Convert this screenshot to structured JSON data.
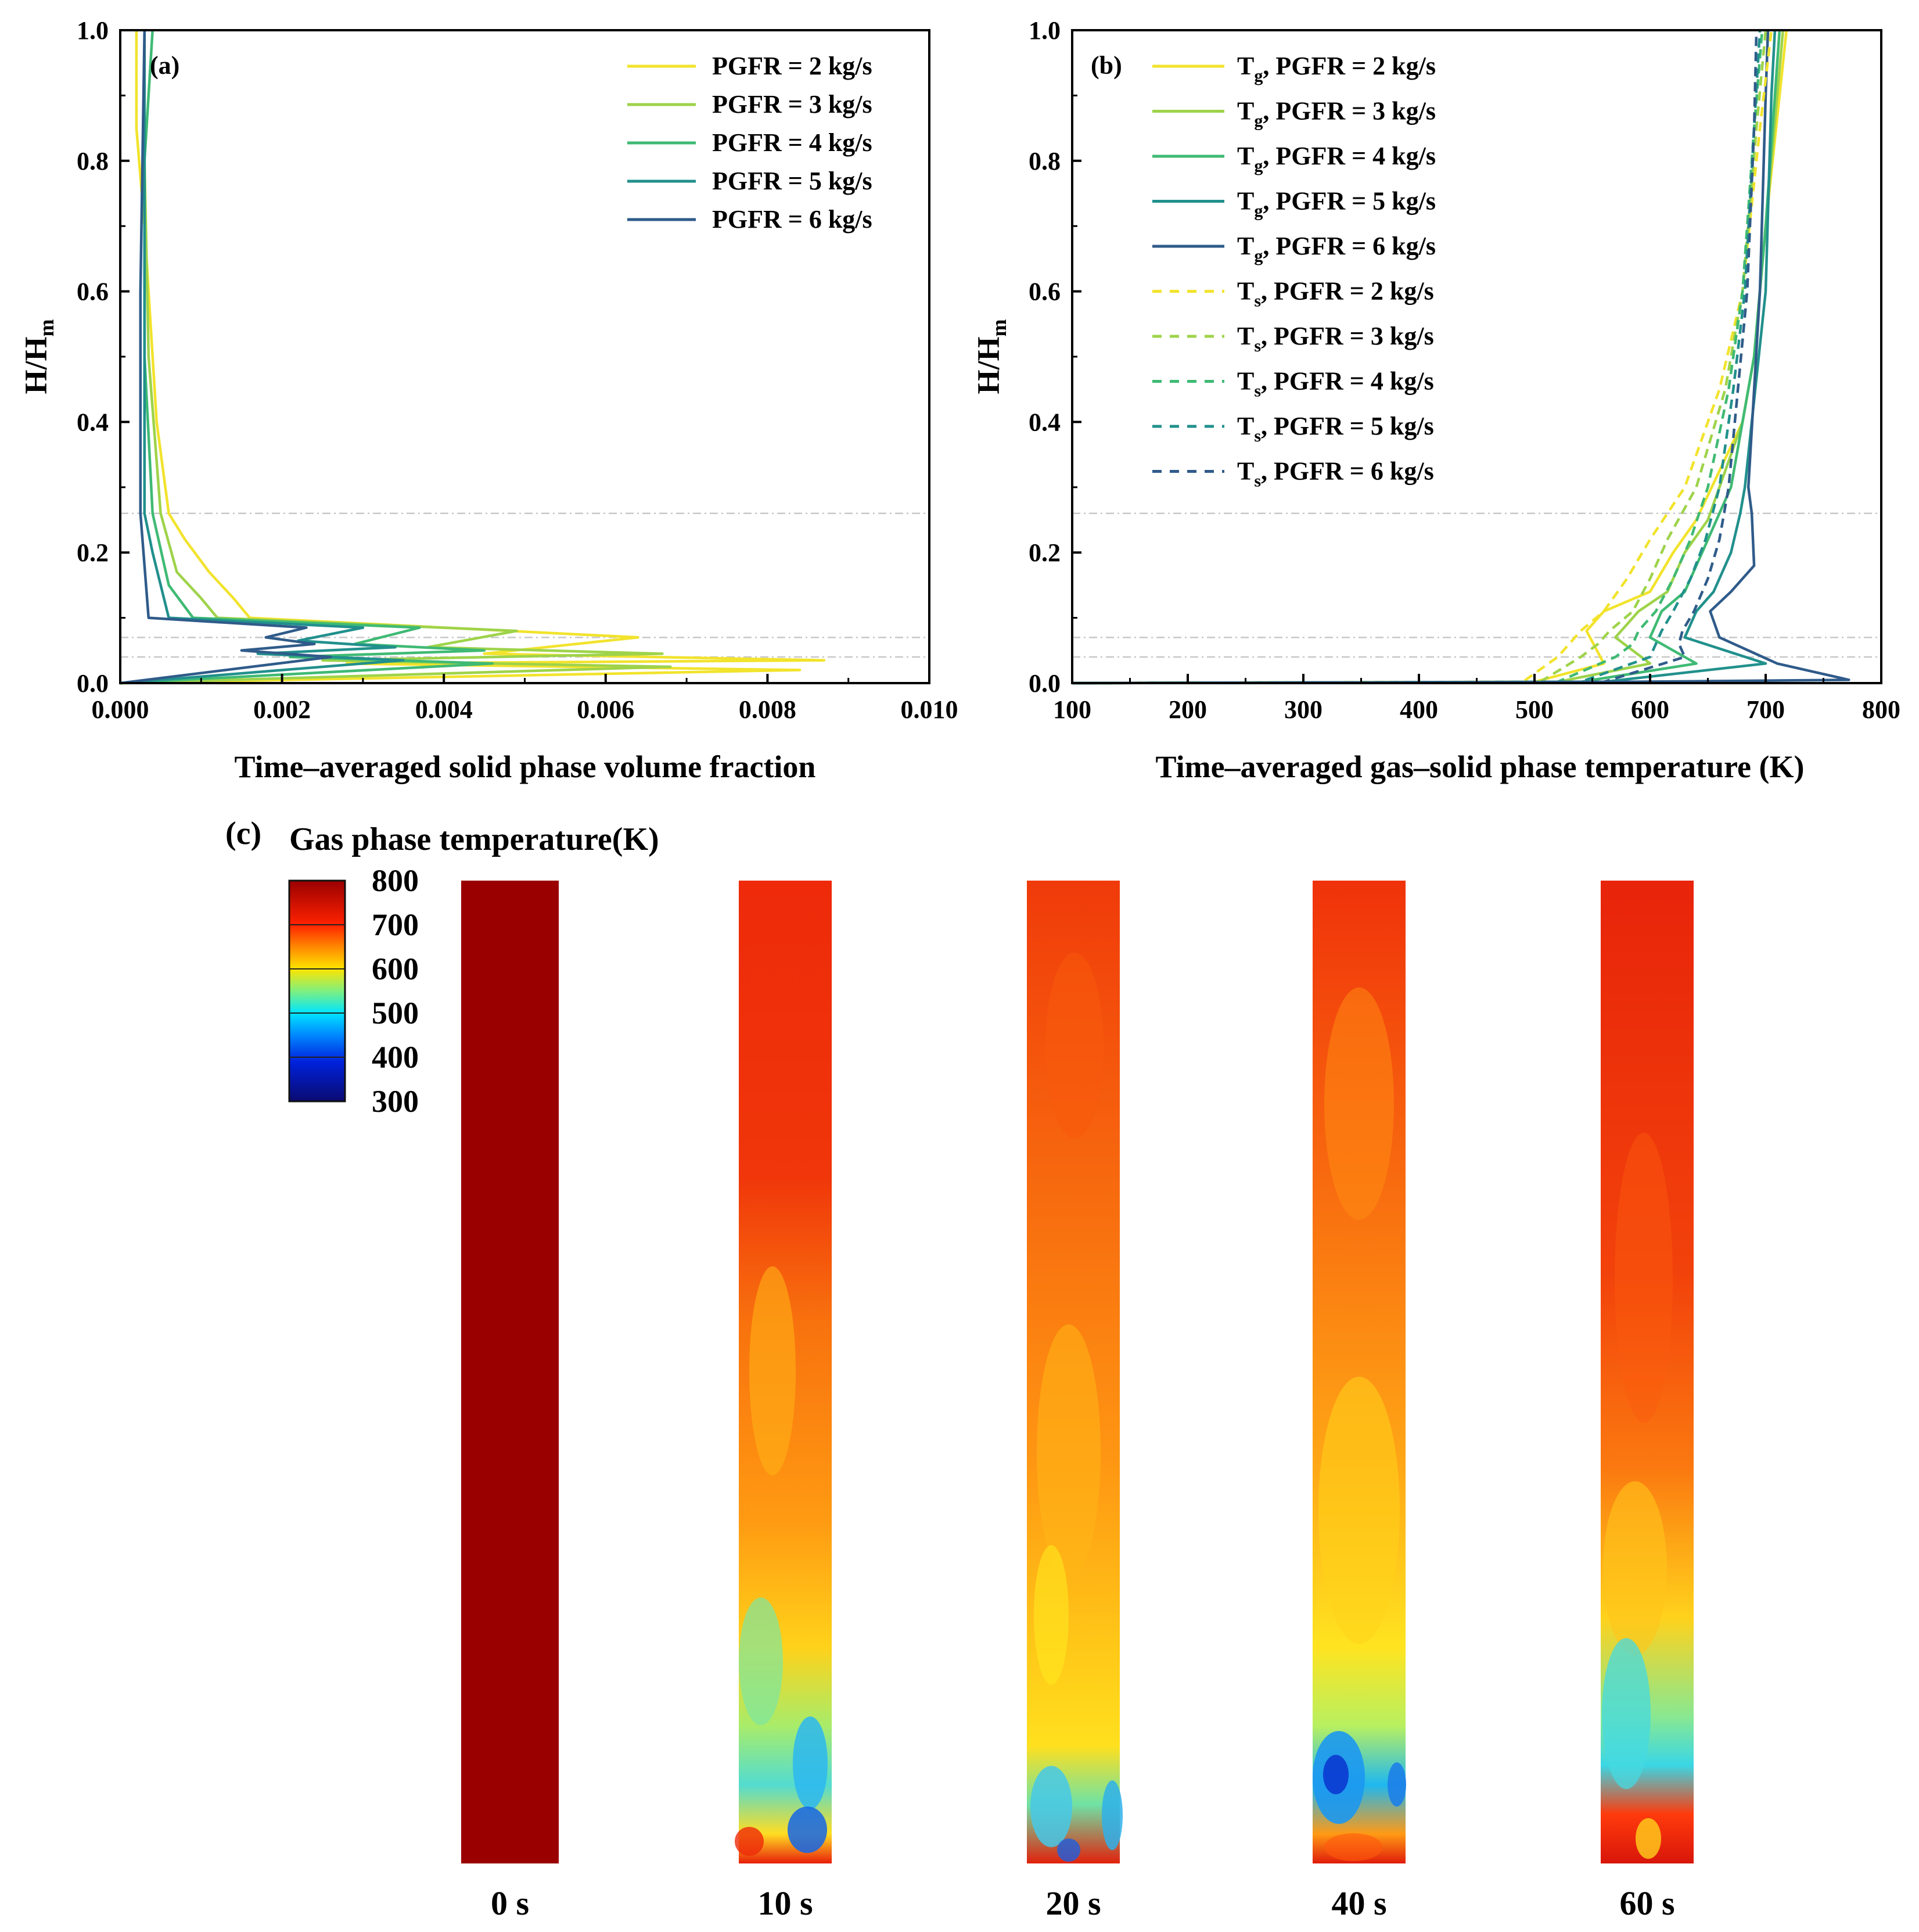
{
  "palette": {
    "pgfr2": "#f2e32c",
    "pgfr3": "#9ed34a",
    "pgfr4": "#3fba74",
    "pgfr5": "#21908c",
    "pgfr6": "#2f5b8a",
    "guide": "#c8c8c8"
  },
  "panel_a": {
    "label": "(a)",
    "xlabel": "Time–averaged solid phase volume fraction",
    "ylabel_main": "H/H",
    "ylabel_sub": "m",
    "xlim": [
      0,
      0.01
    ],
    "ylim": [
      0,
      1
    ],
    "xticks": [
      "0.000",
      "0.002",
      "0.004",
      "0.006",
      "0.008",
      "0.010"
    ],
    "yticks": [
      "0.0",
      "0.2",
      "0.4",
      "0.6",
      "0.8",
      "1.0"
    ],
    "legend": [
      "PGFR = 2 kg/s",
      "PGFR = 3 kg/s",
      "PGFR = 4 kg/s",
      "PGFR = 5 kg/s",
      "PGFR = 6 kg/s"
    ]
  },
  "panel_b": {
    "label": "(b)",
    "xlabel": "Time–averaged gas–solid phase temperature (K)",
    "ylabel_main": "H/H",
    "ylabel_sub": "m",
    "xlim": [
      100,
      800
    ],
    "ylim": [
      0,
      1
    ],
    "xticks": [
      "100",
      "200",
      "300",
      "400",
      "500",
      "600",
      "700",
      "800"
    ],
    "yticks": [
      "0.0",
      "0.2",
      "0.4",
      "0.6",
      "0.8",
      "1.0"
    ],
    "legend_gas": [
      {
        "sym": "T",
        "sub": "g",
        "text": ", PGFR = 2 kg/s"
      },
      {
        "sym": "T",
        "sub": "g",
        "text": ", PGFR = 3 kg/s"
      },
      {
        "sym": "T",
        "sub": "g",
        "text": ", PGFR = 4 kg/s"
      },
      {
        "sym": "T",
        "sub": "g",
        "text": ", PGFR = 5 kg/s"
      },
      {
        "sym": "T",
        "sub": "g",
        "text": ", PGFR = 6 kg/s"
      }
    ],
    "legend_solid": [
      {
        "sym": "T",
        "sub": "s",
        "text": ", PGFR = 2 kg/s"
      },
      {
        "sym": "T",
        "sub": "s",
        "text": ", PGFR = 3 kg/s"
      },
      {
        "sym": "T",
        "sub": "s",
        "text": ", PGFR = 4 kg/s"
      },
      {
        "sym": "T",
        "sub": "s",
        "text": ", PGFR = 5 kg/s"
      },
      {
        "sym": "T",
        "sub": "s",
        "text": ", PGFR = 6 kg/s"
      }
    ]
  },
  "panel_c": {
    "label": "(c)",
    "title": "Gas phase temperature(K)",
    "colorbar_ticks": [
      "800",
      "700",
      "600",
      "500",
      "400",
      "300"
    ],
    "times": [
      "0 s",
      "10 s",
      "20 s",
      "40 s",
      "60 s"
    ]
  },
  "chart_data": [
    {
      "type": "line",
      "title": "(a)",
      "xlabel": "Time–averaged solid phase volume fraction",
      "ylabel": "H/Hm",
      "xlim": [
        0,
        0.01
      ],
      "ylim": [
        0,
        1
      ],
      "reference_lines_y": [
        0.04,
        0.07,
        0.26
      ],
      "series": [
        {
          "name": "PGFR = 2 kg/s",
          "x": [
            0,
            0.0084,
            0.0028,
            0.0087,
            0.0045,
            0.0064,
            0.0016,
            0.0014,
            0.0011,
            0.0008,
            0.0006,
            0.00045,
            0.0003,
            0.0002,
            0.0002
          ],
          "y": [
            0,
            0.02,
            0.03,
            0.035,
            0.045,
            0.07,
            0.1,
            0.13,
            0.17,
            0.22,
            0.26,
            0.4,
            0.7,
            0.85,
            1.0
          ]
        },
        {
          "name": "PGFR = 3 kg/s",
          "x": [
            0,
            0.0068,
            0.0025,
            0.0067,
            0.0038,
            0.0049,
            0.0012,
            0.001,
            0.0007,
            0.0005,
            0.00035,
            0.0003,
            0.0003
          ],
          "y": [
            0,
            0.025,
            0.035,
            0.045,
            0.055,
            0.08,
            0.1,
            0.13,
            0.17,
            0.26,
            0.5,
            0.8,
            1.0
          ]
        },
        {
          "name": "PGFR = 4 kg/s",
          "x": [
            0,
            0.0046,
            0.0021,
            0.0045,
            0.0029,
            0.0037,
            0.0009,
            0.0006,
            0.0004,
            0.0003,
            0.0003,
            0.0004
          ],
          "y": [
            0,
            0.03,
            0.04,
            0.05,
            0.06,
            0.085,
            0.1,
            0.15,
            0.26,
            0.5,
            0.8,
            1.0
          ]
        },
        {
          "name": "PGFR = 5 kg/s",
          "x": [
            0,
            0.0035,
            0.0017,
            0.0034,
            0.0022,
            0.003,
            0.0006,
            0.0004,
            0.0003,
            0.0003,
            0.0003
          ],
          "y": [
            0,
            0.035,
            0.045,
            0.055,
            0.065,
            0.085,
            0.1,
            0.2,
            0.26,
            0.6,
            1.0
          ]
        },
        {
          "name": "PGFR = 6 kg/s",
          "x": [
            0,
            0.0026,
            0.0015,
            0.0024,
            0.0018,
            0.0023,
            0.00035,
            0.00025,
            0.00025,
            0.0003
          ],
          "y": [
            0,
            0.04,
            0.05,
            0.06,
            0.07,
            0.085,
            0.1,
            0.26,
            0.6,
            1.0
          ]
        }
      ]
    },
    {
      "type": "line",
      "title": "(b)",
      "xlabel": "Time–averaged gas–solid phase temperature (K)",
      "ylabel": "H/Hm",
      "xlim": [
        100,
        800
      ],
      "ylim": [
        0,
        1
      ],
      "reference_lines_y": [
        0.04,
        0.07,
        0.26
      ],
      "series": [
        {
          "name": "Tg, PGFR = 2 kg/s",
          "style": "solid",
          "x": [
            100,
            500,
            560,
            545,
            560,
            600,
            620,
            640,
            680,
            690,
            700,
            712,
            718
          ],
          "y": [
            0.0,
            0.002,
            0.03,
            0.08,
            0.11,
            0.14,
            0.2,
            0.25,
            0.4,
            0.5,
            0.7,
            0.9,
            1.0
          ]
        },
        {
          "name": "Tg, PGFR = 3 kg/s",
          "style": "solid",
          "x": [
            100,
            520,
            600,
            570,
            590,
            615,
            630,
            650,
            680,
            690,
            700,
            710,
            715
          ],
          "y": [
            0.0,
            0.002,
            0.03,
            0.07,
            0.11,
            0.14,
            0.2,
            0.25,
            0.4,
            0.5,
            0.7,
            0.9,
            1.0
          ]
        },
        {
          "name": "Tg, PGFR = 4 kg/s",
          "style": "solid",
          "x": [
            100,
            540,
            640,
            600,
            610,
            630,
            645,
            660,
            670,
            680,
            690,
            700,
            708,
            712
          ],
          "y": [
            0.0,
            0.002,
            0.03,
            0.07,
            0.11,
            0.14,
            0.2,
            0.26,
            0.3,
            0.4,
            0.5,
            0.7,
            0.9,
            1.0
          ]
        },
        {
          "name": "Tg, PGFR = 5 kg/s",
          "style": "solid",
          "x": [
            100,
            560,
            700,
            630,
            640,
            655,
            670,
            678,
            682,
            688,
            700,
            705,
            708
          ],
          "y": [
            0.0,
            0.002,
            0.03,
            0.07,
            0.11,
            0.14,
            0.2,
            0.26,
            0.3,
            0.4,
            0.6,
            0.9,
            1.0
          ]
        },
        {
          "name": "Tg, PGFR = 6 kg/s",
          "style": "solid",
          "x": [
            100,
            580,
            772,
            710,
            660,
            652,
            670,
            690,
            688,
            685,
            695,
            700,
            702
          ],
          "y": [
            0.0,
            0.002,
            0.005,
            0.03,
            0.07,
            0.11,
            0.14,
            0.18,
            0.26,
            0.3,
            0.6,
            0.9,
            1.0
          ]
        },
        {
          "name": "Ts, PGFR = 2 kg/s",
          "style": "dashed",
          "x": [
            100,
            490,
            520,
            530,
            540,
            560,
            580,
            600,
            630,
            660,
            680,
            695,
            705
          ],
          "y": [
            0.0,
            0.002,
            0.04,
            0.06,
            0.08,
            0.11,
            0.16,
            0.22,
            0.3,
            0.45,
            0.6,
            0.85,
            1.0
          ]
        },
        {
          "name": "Ts, PGFR = 3 kg/s",
          "style": "dashed",
          "x": [
            100,
            505,
            540,
            555,
            565,
            585,
            600,
            615,
            640,
            665,
            680,
            692,
            700
          ],
          "y": [
            0.0,
            0.002,
            0.04,
            0.06,
            0.08,
            0.11,
            0.16,
            0.22,
            0.3,
            0.45,
            0.6,
            0.85,
            1.0
          ]
        },
        {
          "name": "Ts, PGFR = 4 kg/s",
          "style": "dashed",
          "x": [
            100,
            520,
            570,
            585,
            590,
            605,
            620,
            635,
            650,
            668,
            680,
            690,
            697
          ],
          "y": [
            0.0,
            0.002,
            0.04,
            0.06,
            0.08,
            0.11,
            0.16,
            0.22,
            0.3,
            0.45,
            0.6,
            0.85,
            1.0
          ]
        },
        {
          "name": "Ts, PGFR = 5 kg/s",
          "style": "dashed",
          "x": [
            100,
            540,
            600,
            605,
            610,
            620,
            635,
            648,
            660,
            672,
            682,
            690,
            695
          ],
          "y": [
            0.0,
            0.002,
            0.04,
            0.06,
            0.08,
            0.11,
            0.16,
            0.22,
            0.3,
            0.45,
            0.6,
            0.85,
            1.0
          ]
        },
        {
          "name": "Ts, PGFR = 6 kg/s",
          "style": "dashed",
          "x": [
            100,
            560,
            630,
            625,
            628,
            638,
            650,
            660,
            668,
            676,
            684,
            690,
            692
          ],
          "y": [
            0.0,
            0.002,
            0.04,
            0.06,
            0.08,
            0.11,
            0.16,
            0.22,
            0.3,
            0.45,
            0.6,
            0.85,
            1.0
          ]
        }
      ]
    }
  ]
}
